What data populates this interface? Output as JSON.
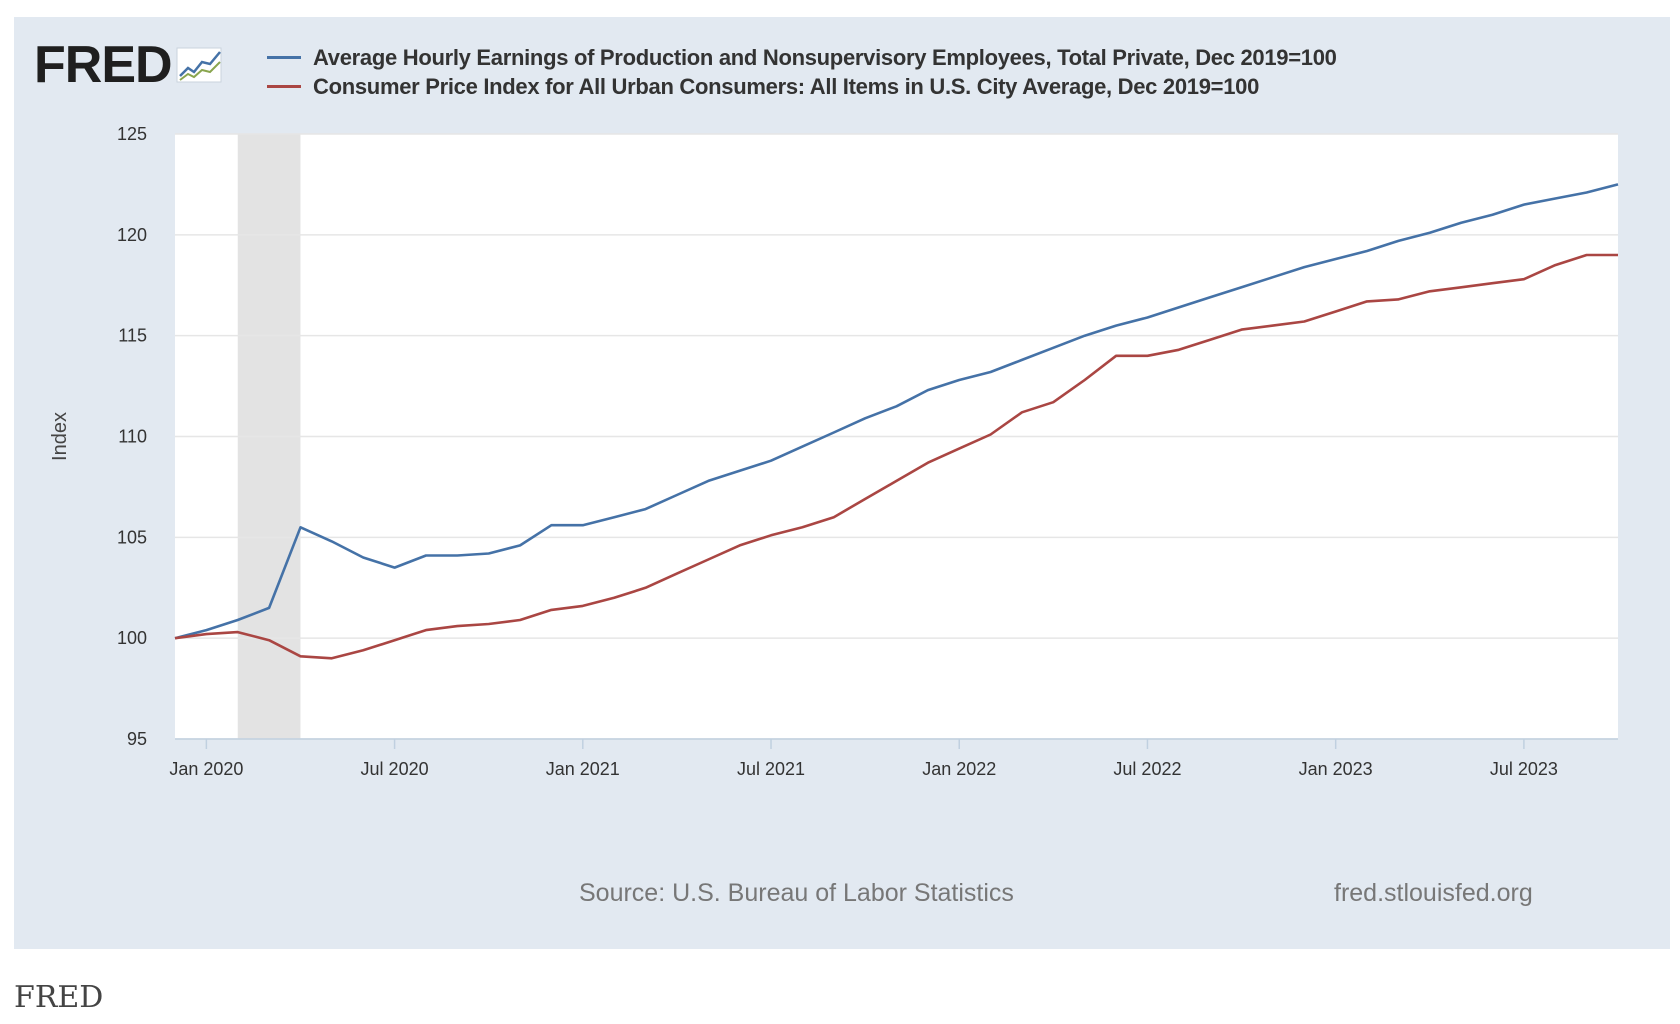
{
  "logo": {
    "text": "FRED",
    "mark": "chart-graph-icon"
  },
  "legend": [
    {
      "label": "Average Hourly Earnings of Production and Nonsupervisory Employees, Total Private, Dec 2019=100",
      "color": "#4572a7"
    },
    {
      "label": "Consumer Price Index for All Urban Consumers: All Items in U.S. City Average, Dec 2019=100",
      "color": "#aa4643"
    }
  ],
  "footer": {
    "source": "Source: U.S. Bureau of Labor Statistics",
    "site": "fred.stlouisfed.org"
  },
  "caption": "FRED",
  "chart_data": {
    "type": "line",
    "title": "",
    "xlabel": "",
    "ylabel": "Index",
    "ylim": [
      95,
      125
    ],
    "yticks": [
      95,
      100,
      105,
      110,
      115,
      120,
      125
    ],
    "xticks": [
      {
        "label": "Jan 2020",
        "month_index": 1
      },
      {
        "label": "Jul 2020",
        "month_index": 7
      },
      {
        "label": "Jan 2021",
        "month_index": 13
      },
      {
        "label": "Jul 2021",
        "month_index": 19
      },
      {
        "label": "Jan 2022",
        "month_index": 25
      },
      {
        "label": "Jul 2022",
        "month_index": 31
      },
      {
        "label": "Jan 2023",
        "month_index": 37
      },
      {
        "label": "Jul 2023",
        "month_index": 43
      }
    ],
    "x_range_months": [
      0,
      46
    ],
    "x_note": "month_index 0 = Dec 2019, 46 = Oct 2023",
    "recession": {
      "start_month_index": 2,
      "end_month_index": 4
    },
    "grid": true,
    "series": [
      {
        "name": "Average Hourly Earnings of Production and Nonsupervisory Employees, Total Private, Dec 2019=100",
        "color": "#4572a7",
        "values": [
          100.0,
          100.4,
          100.9,
          101.5,
          105.5,
          104.8,
          104.0,
          103.5,
          104.1,
          104.1,
          104.2,
          104.6,
          105.6,
          105.6,
          106.0,
          106.4,
          107.1,
          107.8,
          108.3,
          108.8,
          109.5,
          110.2,
          110.9,
          111.5,
          112.3,
          112.8,
          113.2,
          113.8,
          114.4,
          115.0,
          115.5,
          115.9,
          116.4,
          116.9,
          117.4,
          117.9,
          118.4,
          118.8,
          119.2,
          119.7,
          120.1,
          120.6,
          121.0,
          121.5,
          121.8,
          122.1,
          122.5
        ]
      },
      {
        "name": "Consumer Price Index for All Urban Consumers: All Items in U.S. City Average, Dec 2019=100",
        "color": "#aa4643",
        "values": [
          100.0,
          100.2,
          100.3,
          99.9,
          99.1,
          99.0,
          99.4,
          99.9,
          100.4,
          100.6,
          100.7,
          100.9,
          101.4,
          101.6,
          102.0,
          102.5,
          103.2,
          103.9,
          104.6,
          105.1,
          105.5,
          106.0,
          106.9,
          107.8,
          108.7,
          109.4,
          110.1,
          111.2,
          111.7,
          112.8,
          114.0,
          114.0,
          114.3,
          114.8,
          115.3,
          115.5,
          115.7,
          116.2,
          116.7,
          116.8,
          117.2,
          117.4,
          117.6,
          117.8,
          118.5,
          119.0,
          119.0
        ]
      }
    ]
  }
}
